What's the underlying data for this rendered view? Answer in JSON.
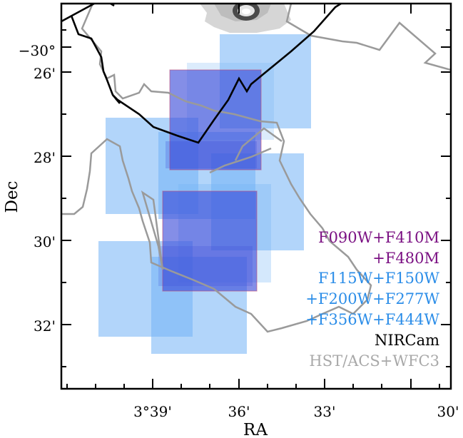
{
  "chart_data": {
    "type": "sky-footprint-map",
    "xlabel": "RA",
    "ylabel": "Dec",
    "x_ticks": [
      "3°39'",
      "36'",
      "33'",
      "30'"
    ],
    "y_ticks": [
      "−30°",
      "26'",
      "28'",
      "30'",
      "32'"
    ],
    "legend": [
      {
        "text": "F090W+F410M",
        "color": "#7b1183"
      },
      {
        "text": "+F480M",
        "color": "#7b1183"
      },
      {
        "text": "F115W+F150W",
        "color": "#2b8de8"
      },
      {
        "text": "+F200W+F277W",
        "color": "#2b8de8"
      },
      {
        "text": "+F356W+F444W",
        "color": "#2b8de8"
      },
      {
        "text": "NIRCam",
        "color": "#000000"
      },
      {
        "text": "HST/ACS+WFC3",
        "color": "#a8a8a8"
      }
    ],
    "colors": {
      "wide_bands": "#72b3f5",
      "medium_bands": "#3b4fd8",
      "medium_border": "#c0507a",
      "hst_outline": "#9a9a9a",
      "nircam_outline": "#000000",
      "galaxy": "#d0d0d0"
    }
  }
}
